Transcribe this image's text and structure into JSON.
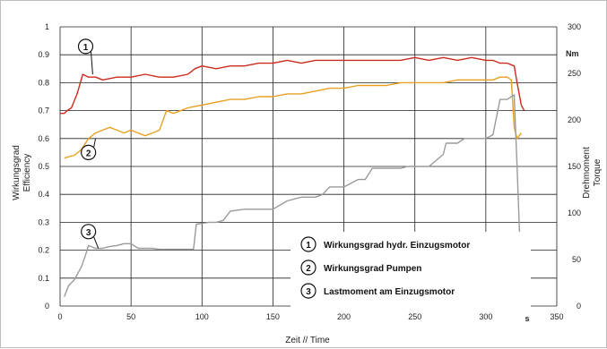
{
  "chart_data": {
    "type": "line",
    "xlabel": "Zeit // Time",
    "x_unit_marker": "s",
    "ylabel_left": [
      "Wirkungsgrad",
      "Efficiency"
    ],
    "ylabel_right": [
      "Drehmoment",
      "Torque"
    ],
    "right_unit": "Nm",
    "xlim": [
      0,
      350
    ],
    "ylim_left": [
      0,
      1
    ],
    "ylim_right": [
      0,
      300
    ],
    "x_ticks": [
      0,
      50,
      100,
      150,
      200,
      250,
      300,
      350
    ],
    "y_left_ticks": [
      0,
      0.1,
      0.2,
      0.3,
      0.4,
      0.5,
      0.6,
      0.7,
      0.8,
      0.9,
      1
    ],
    "y_left_tick_labels": [
      "0",
      "0.1",
      "0.2",
      "0.3",
      "0.4",
      "0.5",
      "0.6",
      "0.7",
      "0.8",
      "0.9",
      "1"
    ],
    "y_right_ticks": [
      0,
      50,
      100,
      150,
      200,
      250,
      300
    ],
    "grid": true,
    "series": [
      {
        "name": "Wirkungsgrad hydr. Einzugsmotor",
        "axis": "left",
        "color": "#cc2a1e",
        "x": [
          0,
          3,
          5,
          8,
          12,
          16,
          20,
          25,
          30,
          40,
          50,
          60,
          70,
          80,
          90,
          95,
          100,
          110,
          120,
          130,
          140,
          150,
          160,
          170,
          180,
          190,
          200,
          210,
          220,
          230,
          240,
          250,
          260,
          270,
          280,
          290,
          300,
          305,
          310,
          315,
          320,
          322,
          325,
          327
        ],
        "y": [
          0.69,
          0.69,
          0.7,
          0.71,
          0.76,
          0.83,
          0.82,
          0.82,
          0.81,
          0.82,
          0.82,
          0.83,
          0.82,
          0.82,
          0.83,
          0.85,
          0.86,
          0.85,
          0.86,
          0.86,
          0.87,
          0.87,
          0.88,
          0.87,
          0.88,
          0.88,
          0.88,
          0.88,
          0.88,
          0.88,
          0.88,
          0.89,
          0.88,
          0.89,
          0.88,
          0.89,
          0.88,
          0.88,
          0.87,
          0.87,
          0.86,
          0.8,
          0.72,
          0.7
        ]
      },
      {
        "name": "Wirkungsgrad Pumpen",
        "axis": "left",
        "color": "#e8a020",
        "x": [
          3,
          10,
          15,
          20,
          25,
          30,
          35,
          40,
          45,
          50,
          55,
          60,
          65,
          70,
          75,
          80,
          90,
          100,
          110,
          120,
          130,
          140,
          150,
          160,
          170,
          180,
          190,
          200,
          210,
          220,
          230,
          240,
          250,
          260,
          270,
          280,
          290,
          300,
          305,
          310,
          315,
          318,
          320,
          322,
          325
        ],
        "y": [
          0.53,
          0.54,
          0.56,
          0.6,
          0.62,
          0.63,
          0.64,
          0.63,
          0.62,
          0.63,
          0.62,
          0.61,
          0.62,
          0.63,
          0.7,
          0.69,
          0.71,
          0.72,
          0.73,
          0.74,
          0.74,
          0.75,
          0.75,
          0.76,
          0.76,
          0.77,
          0.78,
          0.78,
          0.79,
          0.79,
          0.79,
          0.8,
          0.8,
          0.8,
          0.8,
          0.81,
          0.81,
          0.81,
          0.81,
          0.82,
          0.82,
          0.81,
          0.64,
          0.6,
          0.62
        ]
      },
      {
        "name": "Lastmoment am Einzugsmotor",
        "axis": "right",
        "color": "#9a9a9a",
        "x": [
          3,
          6,
          10,
          15,
          18,
          20,
          25,
          30,
          35,
          40,
          45,
          50,
          55,
          60,
          65,
          70,
          80,
          90,
          94,
          96,
          105,
          110,
          115,
          120,
          130,
          140,
          150,
          160,
          170,
          180,
          185,
          190,
          200,
          210,
          215,
          220,
          230,
          240,
          245,
          250,
          260,
          270,
          272,
          280,
          285,
          290,
          300,
          305,
          310,
          315,
          320,
          322,
          325
        ],
        "y": [
          10,
          22,
          28,
          42,
          55,
          65,
          62,
          62,
          64,
          65,
          67,
          67,
          62,
          62,
          62,
          61,
          61,
          61,
          61,
          88,
          90,
          90,
          92,
          102,
          104,
          104,
          104,
          113,
          117,
          117,
          120,
          128,
          128,
          136,
          136,
          148,
          148,
          148,
          150,
          150,
          150,
          163,
          175,
          175,
          180,
          180,
          180,
          184,
          222,
          222,
          227,
          150,
          28
        ]
      }
    ],
    "callouts": [
      {
        "id": "1",
        "series": 0,
        "x": 23,
        "y": 0.83,
        "label_x": 18,
        "label_y": 0.93
      },
      {
        "id": "2",
        "series": 1,
        "x": 25,
        "y": 0.6,
        "label_x": 20,
        "label_y": 0.55
      },
      {
        "id": "3",
        "series": 2,
        "x": 27,
        "y": 62,
        "label_x": 20,
        "label_y": 80
      }
    ],
    "legend": {
      "placement": "bottom-right",
      "items": [
        {
          "num": "1",
          "label": "Wirkungsgrad hydr. Einzugsmotor"
        },
        {
          "num": "2",
          "label": "Wirkungsgrad Pumpen"
        },
        {
          "num": "3",
          "label": "Lastmoment am Einzugsmotor"
        }
      ]
    }
  }
}
